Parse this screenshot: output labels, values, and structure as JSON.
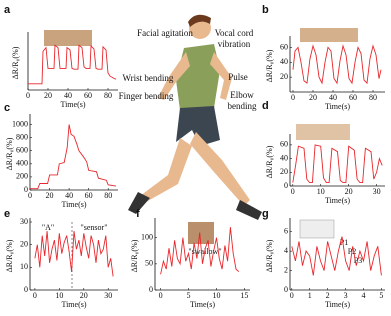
{
  "labels": [
    "Facial agitation",
    "Vocal cord",
    "vibration",
    "Pulse",
    "Wrist bending",
    "Finger bending",
    "Elbow",
    "bending"
  ],
  "chart_data": [
    {
      "type": "line",
      "panel": "a",
      "x_label": "Time(s)",
      "y_label": "ΔR/R₀(%)",
      "color": "#e8262b",
      "xlim": [
        0,
        90
      ],
      "xticks": [
        0,
        20,
        40,
        60,
        80
      ],
      "ylim": [
        0,
        70
      ],
      "x": [
        0,
        14,
        15,
        18,
        20,
        22,
        26,
        27,
        30,
        32,
        34,
        38,
        39,
        42,
        44,
        46,
        50,
        51,
        54,
        56,
        58,
        62,
        63,
        66,
        68,
        70,
        74,
        75,
        78,
        80,
        82,
        86,
        88
      ],
      "values": [
        8,
        8,
        50,
        55,
        28,
        28,
        28,
        58,
        55,
        28,
        28,
        28,
        55,
        52,
        28,
        27,
        27,
        58,
        55,
        30,
        28,
        28,
        57,
        53,
        28,
        27,
        27,
        56,
        52,
        22,
        18,
        15,
        14
      ]
    },
    {
      "type": "line",
      "panel": "b",
      "x_label": "Time(s)",
      "y_label": "ΔR/R₀(%)",
      "color": "#e8262b",
      "xlim": [
        -3,
        92
      ],
      "xticks": [
        0,
        20,
        40,
        60,
        80
      ],
      "ylim": [
        0,
        70
      ],
      "yticks": [
        20,
        40,
        60
      ],
      "x": [
        0,
        2,
        5,
        8,
        11,
        14,
        17,
        20,
        23,
        26,
        29,
        32,
        35,
        38,
        41,
        44,
        47,
        50,
        53,
        56,
        59,
        62,
        65,
        68,
        71,
        74,
        77,
        80,
        83,
        86,
        88
      ],
      "values": [
        30,
        55,
        60,
        40,
        15,
        12,
        45,
        62,
        50,
        20,
        12,
        40,
        60,
        55,
        18,
        12,
        42,
        62,
        50,
        18,
        12,
        40,
        60,
        52,
        16,
        12,
        45,
        62,
        50,
        18,
        30
      ]
    },
    {
      "type": "line",
      "panel": "c",
      "x_label": "Time(s)",
      "y_label": "ΔR/R₀(%)",
      "color": "#e8262b",
      "xlim": [
        0,
        90
      ],
      "xticks": [
        0,
        20,
        40,
        60,
        80
      ],
      "ylim": [
        0,
        1100
      ],
      "yticks": [
        0,
        200,
        400,
        600,
        800,
        1000
      ],
      "x": [
        0,
        8,
        10,
        18,
        20,
        28,
        30,
        35,
        38,
        40,
        42,
        45,
        48,
        50,
        55,
        58,
        60,
        68,
        70,
        78,
        80,
        88
      ],
      "values": [
        20,
        20,
        100,
        100,
        230,
        230,
        400,
        420,
        650,
        1000,
        850,
        820,
        700,
        600,
        500,
        430,
        300,
        280,
        180,
        150,
        80,
        60
      ]
    },
    {
      "type": "line",
      "panel": "d",
      "x_label": "Time(s)",
      "y_label": "ΔR/R₀(%)",
      "color": "#e8262b",
      "xlim": [
        -1,
        33
      ],
      "xticks": [
        0,
        10,
        20,
        30
      ],
      "ylim": [
        0,
        70
      ],
      "yticks": [
        0,
        20,
        40,
        60
      ],
      "x": [
        0,
        1,
        2,
        4,
        5,
        6,
        7,
        8,
        10,
        11,
        12,
        13,
        14,
        16,
        17,
        18,
        19,
        20,
        22,
        23,
        24,
        25,
        26,
        28,
        29,
        30,
        31,
        32
      ],
      "values": [
        5,
        30,
        58,
        55,
        10,
        5,
        5,
        60,
        58,
        12,
        5,
        5,
        55,
        50,
        8,
        5,
        5,
        58,
        52,
        10,
        5,
        5,
        55,
        50,
        10,
        20,
        40,
        30
      ]
    },
    {
      "type": "line",
      "panel": "e",
      "x_label": "Time(s)",
      "y_label": "ΔR/R₀(%)",
      "color": "#e8262b",
      "annotations": [
        "\"A\"",
        "\"sensor\""
      ],
      "xlim": [
        -2,
        34
      ],
      "xticks": [
        0,
        10,
        20,
        30
      ],
      "ylim": [
        0,
        30
      ],
      "yticks": [
        0,
        10,
        20,
        30
      ],
      "x": [
        0,
        1,
        2,
        3,
        4,
        5,
        6,
        7,
        8,
        9,
        10,
        11,
        12,
        13,
        14,
        15,
        16,
        17,
        18,
        19,
        20,
        21,
        22,
        23,
        24,
        25,
        26,
        27,
        28,
        29,
        30,
        31,
        32
      ],
      "values": [
        14,
        20,
        10,
        24,
        15,
        26,
        12,
        18,
        22,
        13,
        25,
        16,
        21,
        24,
        17,
        8,
        26,
        18,
        22,
        15,
        25,
        19,
        14,
        24,
        20,
        12,
        22,
        16,
        18,
        24,
        10,
        14,
        6
      ]
    },
    {
      "type": "line",
      "panel": "f",
      "x_label": "Time(s)",
      "y_label": "ΔR/R₀(%)",
      "color": "#e8262b",
      "annotations": [
        "\"swallow\""
      ],
      "xlim": [
        -1,
        16
      ],
      "xticks": [
        0,
        5,
        10,
        15
      ],
      "ylim": [
        0,
        130
      ],
      "yticks": [
        0,
        50,
        100
      ],
      "x": [
        0,
        0.5,
        1,
        1.5,
        2,
        2.5,
        3,
        3.5,
        4,
        4.5,
        5,
        5.5,
        6,
        6.5,
        7,
        7.5,
        8,
        8.5,
        9,
        9.5,
        10,
        10.5,
        11,
        11.5,
        12,
        12.5,
        13,
        13.5,
        14
      ],
      "values": [
        30,
        55,
        40,
        80,
        45,
        95,
        60,
        50,
        100,
        55,
        70,
        40,
        90,
        60,
        110,
        50,
        80,
        95,
        45,
        75,
        100,
        60,
        40,
        85,
        55,
        120,
        70,
        40,
        35
      ]
    },
    {
      "type": "line",
      "panel": "g",
      "x_label": "Time(s)",
      "y_label": "ΔR/R₀(%)",
      "color": "#e8262b",
      "annotations": [
        "P1",
        "P2",
        "P3"
      ],
      "xlim": [
        -0.1,
        5.2
      ],
      "xticks": [
        0,
        1,
        2,
        3,
        4,
        5
      ],
      "ylim": [
        0,
        7
      ],
      "yticks": [
        0,
        2,
        4,
        6
      ],
      "x": [
        0,
        0.2,
        0.4,
        0.6,
        0.8,
        1,
        1.2,
        1.4,
        1.6,
        1.8,
        2,
        2.2,
        2.4,
        2.6,
        2.8,
        3,
        3.2,
        3.4,
        3.6,
        3.8,
        4,
        4.2,
        4.4,
        4.6,
        4.8,
        5
      ],
      "values": [
        4.5,
        3,
        5,
        2.5,
        4,
        3.5,
        1.5,
        4.5,
        3,
        2,
        5,
        3.5,
        2,
        4,
        5.5,
        3,
        2,
        4.5,
        2.5,
        4,
        3,
        5,
        2,
        3.5,
        4.5,
        1.5
      ]
    }
  ]
}
